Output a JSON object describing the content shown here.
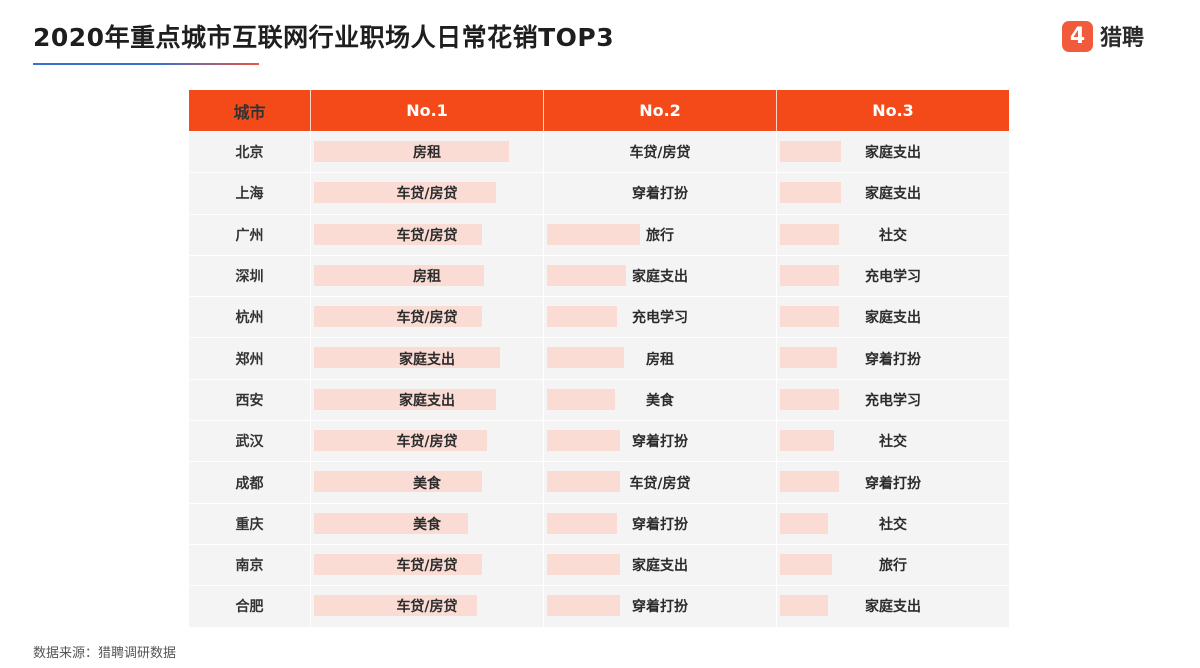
{
  "header": {
    "title": "2020年重点城市互联网行业职场人日常花销TOP3",
    "logo_text": "猎聘",
    "logo_mark": "4"
  },
  "chart_data": {
    "type": "table",
    "columns": [
      "城市",
      "No.1",
      "No.2",
      "No.3"
    ],
    "rows": [
      {
        "city": "北京",
        "no1": "房租",
        "no2": "车贷/房贷",
        "no3": "家庭支出",
        "bars": [
          0.86,
          0.0,
          0.27
        ]
      },
      {
        "city": "上海",
        "no1": "车贷/房贷",
        "no2": "穿着打扮",
        "no3": "家庭支出",
        "bars": [
          0.8,
          0.0,
          0.27
        ]
      },
      {
        "city": "广州",
        "no1": "车贷/房贷",
        "no2": "旅行",
        "no3": "社交",
        "bars": [
          0.74,
          0.41,
          0.26
        ]
      },
      {
        "city": "深圳",
        "no1": "房租",
        "no2": "家庭支出",
        "no3": "充电学习",
        "bars": [
          0.75,
          0.35,
          0.26
        ]
      },
      {
        "city": "杭州",
        "no1": "车贷/房贷",
        "no2": "充电学习",
        "no3": "家庭支出",
        "bars": [
          0.74,
          0.31,
          0.26
        ]
      },
      {
        "city": "郑州",
        "no1": "家庭支出",
        "no2": "房租",
        "no3": "穿着打扮",
        "bars": [
          0.82,
          0.34,
          0.25
        ]
      },
      {
        "city": "西安",
        "no1": "家庭支出",
        "no2": "美食",
        "no3": "充电学习",
        "bars": [
          0.8,
          0.3,
          0.26
        ]
      },
      {
        "city": "武汉",
        "no1": "车贷/房贷",
        "no2": "穿着打扮",
        "no3": "社交",
        "bars": [
          0.76,
          0.32,
          0.24
        ]
      },
      {
        "city": "成都",
        "no1": "美食",
        "no2": "车贷/房贷",
        "no3": "穿着打扮",
        "bars": [
          0.74,
          0.32,
          0.26
        ]
      },
      {
        "city": "重庆",
        "no1": "美食",
        "no2": "穿着打扮",
        "no3": "社交",
        "bars": [
          0.68,
          0.31,
          0.21
        ]
      },
      {
        "city": "南京",
        "no1": "车贷/房贷",
        "no2": "家庭支出",
        "no3": "旅行",
        "bars": [
          0.74,
          0.32,
          0.23
        ]
      },
      {
        "city": "合肥",
        "no1": "车贷/房贷",
        "no2": "穿着打扮",
        "no3": "家庭支出",
        "bars": [
          0.72,
          0.32,
          0.21
        ]
      }
    ]
  },
  "footer": {
    "source": "数据来源：猎聘调研数据"
  },
  "colors": {
    "header_bg": "#f44a1a",
    "bar": "#fadcd5",
    "cell_bg": "#f4f4f4",
    "logo": "#f15a3a"
  }
}
